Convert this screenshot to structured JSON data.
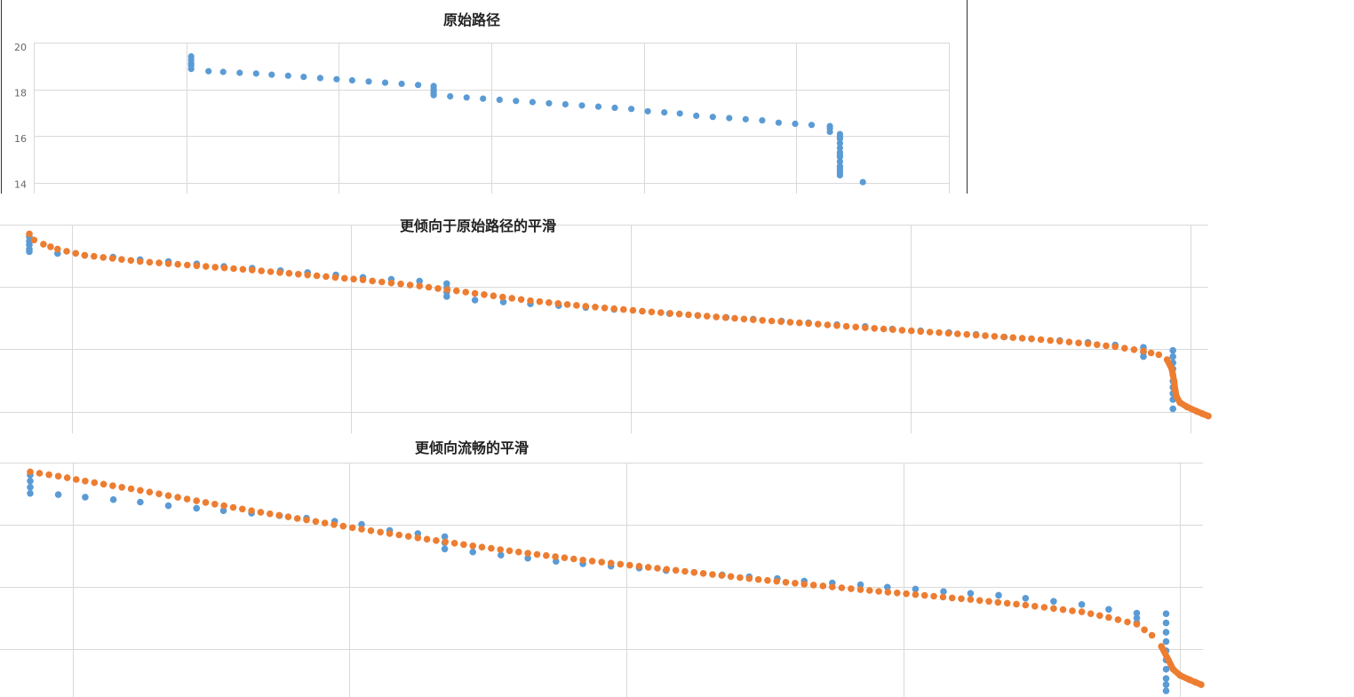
{
  "colors": {
    "original": "#5b9bd5",
    "smoothed": "#ed7d31",
    "grid": "#d9d9d9"
  },
  "chart_data": [
    {
      "type": "scatter",
      "title": "原始路径",
      "ylim": [
        13.6,
        20.2
      ],
      "yticks": [
        "20",
        "18",
        "16",
        "14"
      ],
      "ytick_values": [
        20,
        18,
        16,
        14
      ],
      "grid": true,
      "series": [
        {
          "role": "original",
          "x": [
            0.172,
            0.172,
            0.172,
            0.172,
            0.172,
            0.191,
            0.207,
            0.225,
            0.243,
            0.26,
            0.278,
            0.295,
            0.313,
            0.331,
            0.348,
            0.366,
            0.384,
            0.402,
            0.42,
            0.437,
            0.437,
            0.437,
            0.437,
            0.437,
            0.455,
            0.473,
            0.491,
            0.509,
            0.527,
            0.545,
            0.563,
            0.581,
            0.599,
            0.617,
            0.635,
            0.653,
            0.671,
            0.689,
            0.706,
            0.724,
            0.742,
            0.76,
            0.778,
            0.796,
            0.814,
            0.832,
            0.85,
            0.87,
            0.87,
            0.87,
            0.881,
            0.881,
            0.881,
            0.881,
            0.881,
            0.881,
            0.881,
            0.881,
            0.881,
            0.881,
            0.881,
            0.881,
            0.881,
            0.881,
            0.906
          ],
          "y": [
            19.6,
            19.45,
            19.3,
            19.2,
            19.05,
            18.95,
            18.92,
            18.88,
            18.85,
            18.8,
            18.75,
            18.7,
            18.65,
            18.6,
            18.55,
            18.5,
            18.45,
            18.4,
            18.35,
            18.3,
            18.2,
            18.1,
            18.0,
            17.9,
            17.85,
            17.8,
            17.75,
            17.7,
            17.65,
            17.6,
            17.55,
            17.5,
            17.45,
            17.4,
            17.35,
            17.3,
            17.2,
            17.15,
            17.1,
            17.0,
            16.95,
            16.9,
            16.85,
            16.8,
            16.7,
            16.65,
            16.6,
            16.55,
            16.45,
            16.3,
            16.2,
            16.0,
            15.8,
            15.6,
            15.4,
            15.2,
            15.0,
            14.8,
            14.6,
            14.4,
            16.1,
            15.3,
            14.7,
            14.5,
            14.1
          ]
        }
      ]
    },
    {
      "type": "scatter",
      "title": "更倾向于原始路径的平滑",
      "ylim": [
        -0.1,
        3.3
      ],
      "yticks": [],
      "grid": true,
      "series": [
        {
          "role": "original",
          "x": [
            0.0,
            0.0,
            0.0,
            0.0,
            0.0,
            0.024,
            0.047,
            0.071,
            0.094,
            0.118,
            0.142,
            0.165,
            0.189,
            0.213,
            0.236,
            0.26,
            0.283,
            0.307,
            0.331,
            0.354,
            0.354,
            0.354,
            0.354,
            0.378,
            0.402,
            0.425,
            0.449,
            0.472,
            0.496,
            0.52,
            0.543,
            0.567,
            0.591,
            0.614,
            0.638,
            0.661,
            0.685,
            0.709,
            0.732,
            0.756,
            0.78,
            0.803,
            0.827,
            0.85,
            0.874,
            0.898,
            0.921,
            0.945,
            0.945,
            0.945,
            0.97,
            0.97,
            0.97,
            0.97,
            0.97,
            0.97,
            0.97,
            0.97,
            0.97,
            0.97
          ],
          "y": [
            3.1,
            3.03,
            2.97,
            2.9,
            2.86,
            2.83,
            2.8,
            2.77,
            2.73,
            2.7,
            2.66,
            2.62,
            2.59,
            2.55,
            2.52,
            2.48,
            2.44,
            2.41,
            2.38,
            2.34,
            2.27,
            2.2,
            2.13,
            2.07,
            2.04,
            2.01,
            1.98,
            1.95,
            1.92,
            1.89,
            1.85,
            1.82,
            1.79,
            1.76,
            1.73,
            1.7,
            1.67,
            1.64,
            1.6,
            1.57,
            1.54,
            1.51,
            1.47,
            1.44,
            1.41,
            1.38,
            1.34,
            1.3,
            1.22,
            1.15,
            1.25,
            1.15,
            1.05,
            0.95,
            0.85,
            0.75,
            0.65,
            0.55,
            0.45,
            0.3
          ]
        },
        {
          "role": "smoothed",
          "style": "dense",
          "x": [
            0.0,
            0.004,
            0.012,
            0.024,
            0.047,
            0.094,
            0.142,
            0.189,
            0.236,
            0.283,
            0.331,
            0.378,
            0.425,
            0.472,
            0.52,
            0.567,
            0.614,
            0.661,
            0.709,
            0.756,
            0.803,
            0.85,
            0.898,
            0.921,
            0.945,
            0.958,
            0.965,
            0.969,
            0.971,
            0.972,
            0.973,
            0.976,
            0.982,
            0.99,
            1.0
          ],
          "y": [
            3.15,
            3.05,
            2.98,
            2.9,
            2.8,
            2.7,
            2.63,
            2.56,
            2.48,
            2.4,
            2.3,
            2.18,
            2.06,
            1.97,
            1.89,
            1.82,
            1.75,
            1.69,
            1.62,
            1.56,
            1.5,
            1.44,
            1.36,
            1.31,
            1.24,
            1.18,
            1.1,
            0.95,
            0.75,
            0.6,
            0.5,
            0.4,
            0.33,
            0.26,
            0.18
          ]
        }
      ]
    },
    {
      "type": "scatter",
      "title": "更倾向流畅的平滑",
      "ylim": [
        -0.4,
        3.4
      ],
      "yticks": [],
      "grid": true,
      "series": [
        {
          "role": "original",
          "x": [
            0.0,
            0.0,
            0.0,
            0.0,
            0.024,
            0.047,
            0.071,
            0.094,
            0.118,
            0.142,
            0.165,
            0.189,
            0.213,
            0.236,
            0.26,
            0.283,
            0.307,
            0.331,
            0.354,
            0.354,
            0.354,
            0.378,
            0.402,
            0.425,
            0.449,
            0.472,
            0.496,
            0.52,
            0.543,
            0.567,
            0.591,
            0.614,
            0.638,
            0.661,
            0.685,
            0.709,
            0.732,
            0.756,
            0.78,
            0.803,
            0.827,
            0.85,
            0.874,
            0.898,
            0.921,
            0.945,
            0.945,
            0.945,
            0.97,
            0.97,
            0.97,
            0.97,
            0.97,
            0.97,
            0.97,
            0.97,
            0.97,
            0.97
          ],
          "y": [
            3.2,
            3.1,
            3.0,
            2.9,
            2.88,
            2.84,
            2.8,
            2.76,
            2.7,
            2.66,
            2.62,
            2.58,
            2.54,
            2.5,
            2.45,
            2.4,
            2.3,
            2.25,
            2.2,
            2.1,
            2.0,
            1.95,
            1.9,
            1.85,
            1.8,
            1.76,
            1.72,
            1.69,
            1.65,
            1.62,
            1.58,
            1.55,
            1.52,
            1.48,
            1.45,
            1.42,
            1.38,
            1.35,
            1.31,
            1.28,
            1.25,
            1.2,
            1.15,
            1.1,
            1.02,
            0.96,
            0.88,
            0.8,
            0.95,
            0.8,
            0.65,
            0.5,
            0.35,
            0.2,
            0.05,
            -0.1,
            -0.2,
            -0.3
          ]
        },
        {
          "role": "smoothed",
          "style": "dense",
          "x": [
            0.0,
            0.024,
            0.047,
            0.094,
            0.142,
            0.189,
            0.236,
            0.283,
            0.331,
            0.378,
            0.425,
            0.472,
            0.52,
            0.567,
            0.614,
            0.661,
            0.709,
            0.756,
            0.803,
            0.85,
            0.898,
            0.921,
            0.945,
            0.958,
            0.966,
            0.972,
            0.976,
            0.982,
            0.99,
            1.0
          ],
          "y": [
            3.25,
            3.18,
            3.1,
            2.95,
            2.78,
            2.62,
            2.47,
            2.32,
            2.18,
            2.05,
            1.93,
            1.82,
            1.72,
            1.62,
            1.52,
            1.43,
            1.34,
            1.26,
            1.18,
            1.09,
            0.98,
            0.89,
            0.78,
            0.6,
            0.42,
            0.2,
            0.05,
            -0.05,
            -0.12,
            -0.2
          ]
        }
      ]
    }
  ]
}
